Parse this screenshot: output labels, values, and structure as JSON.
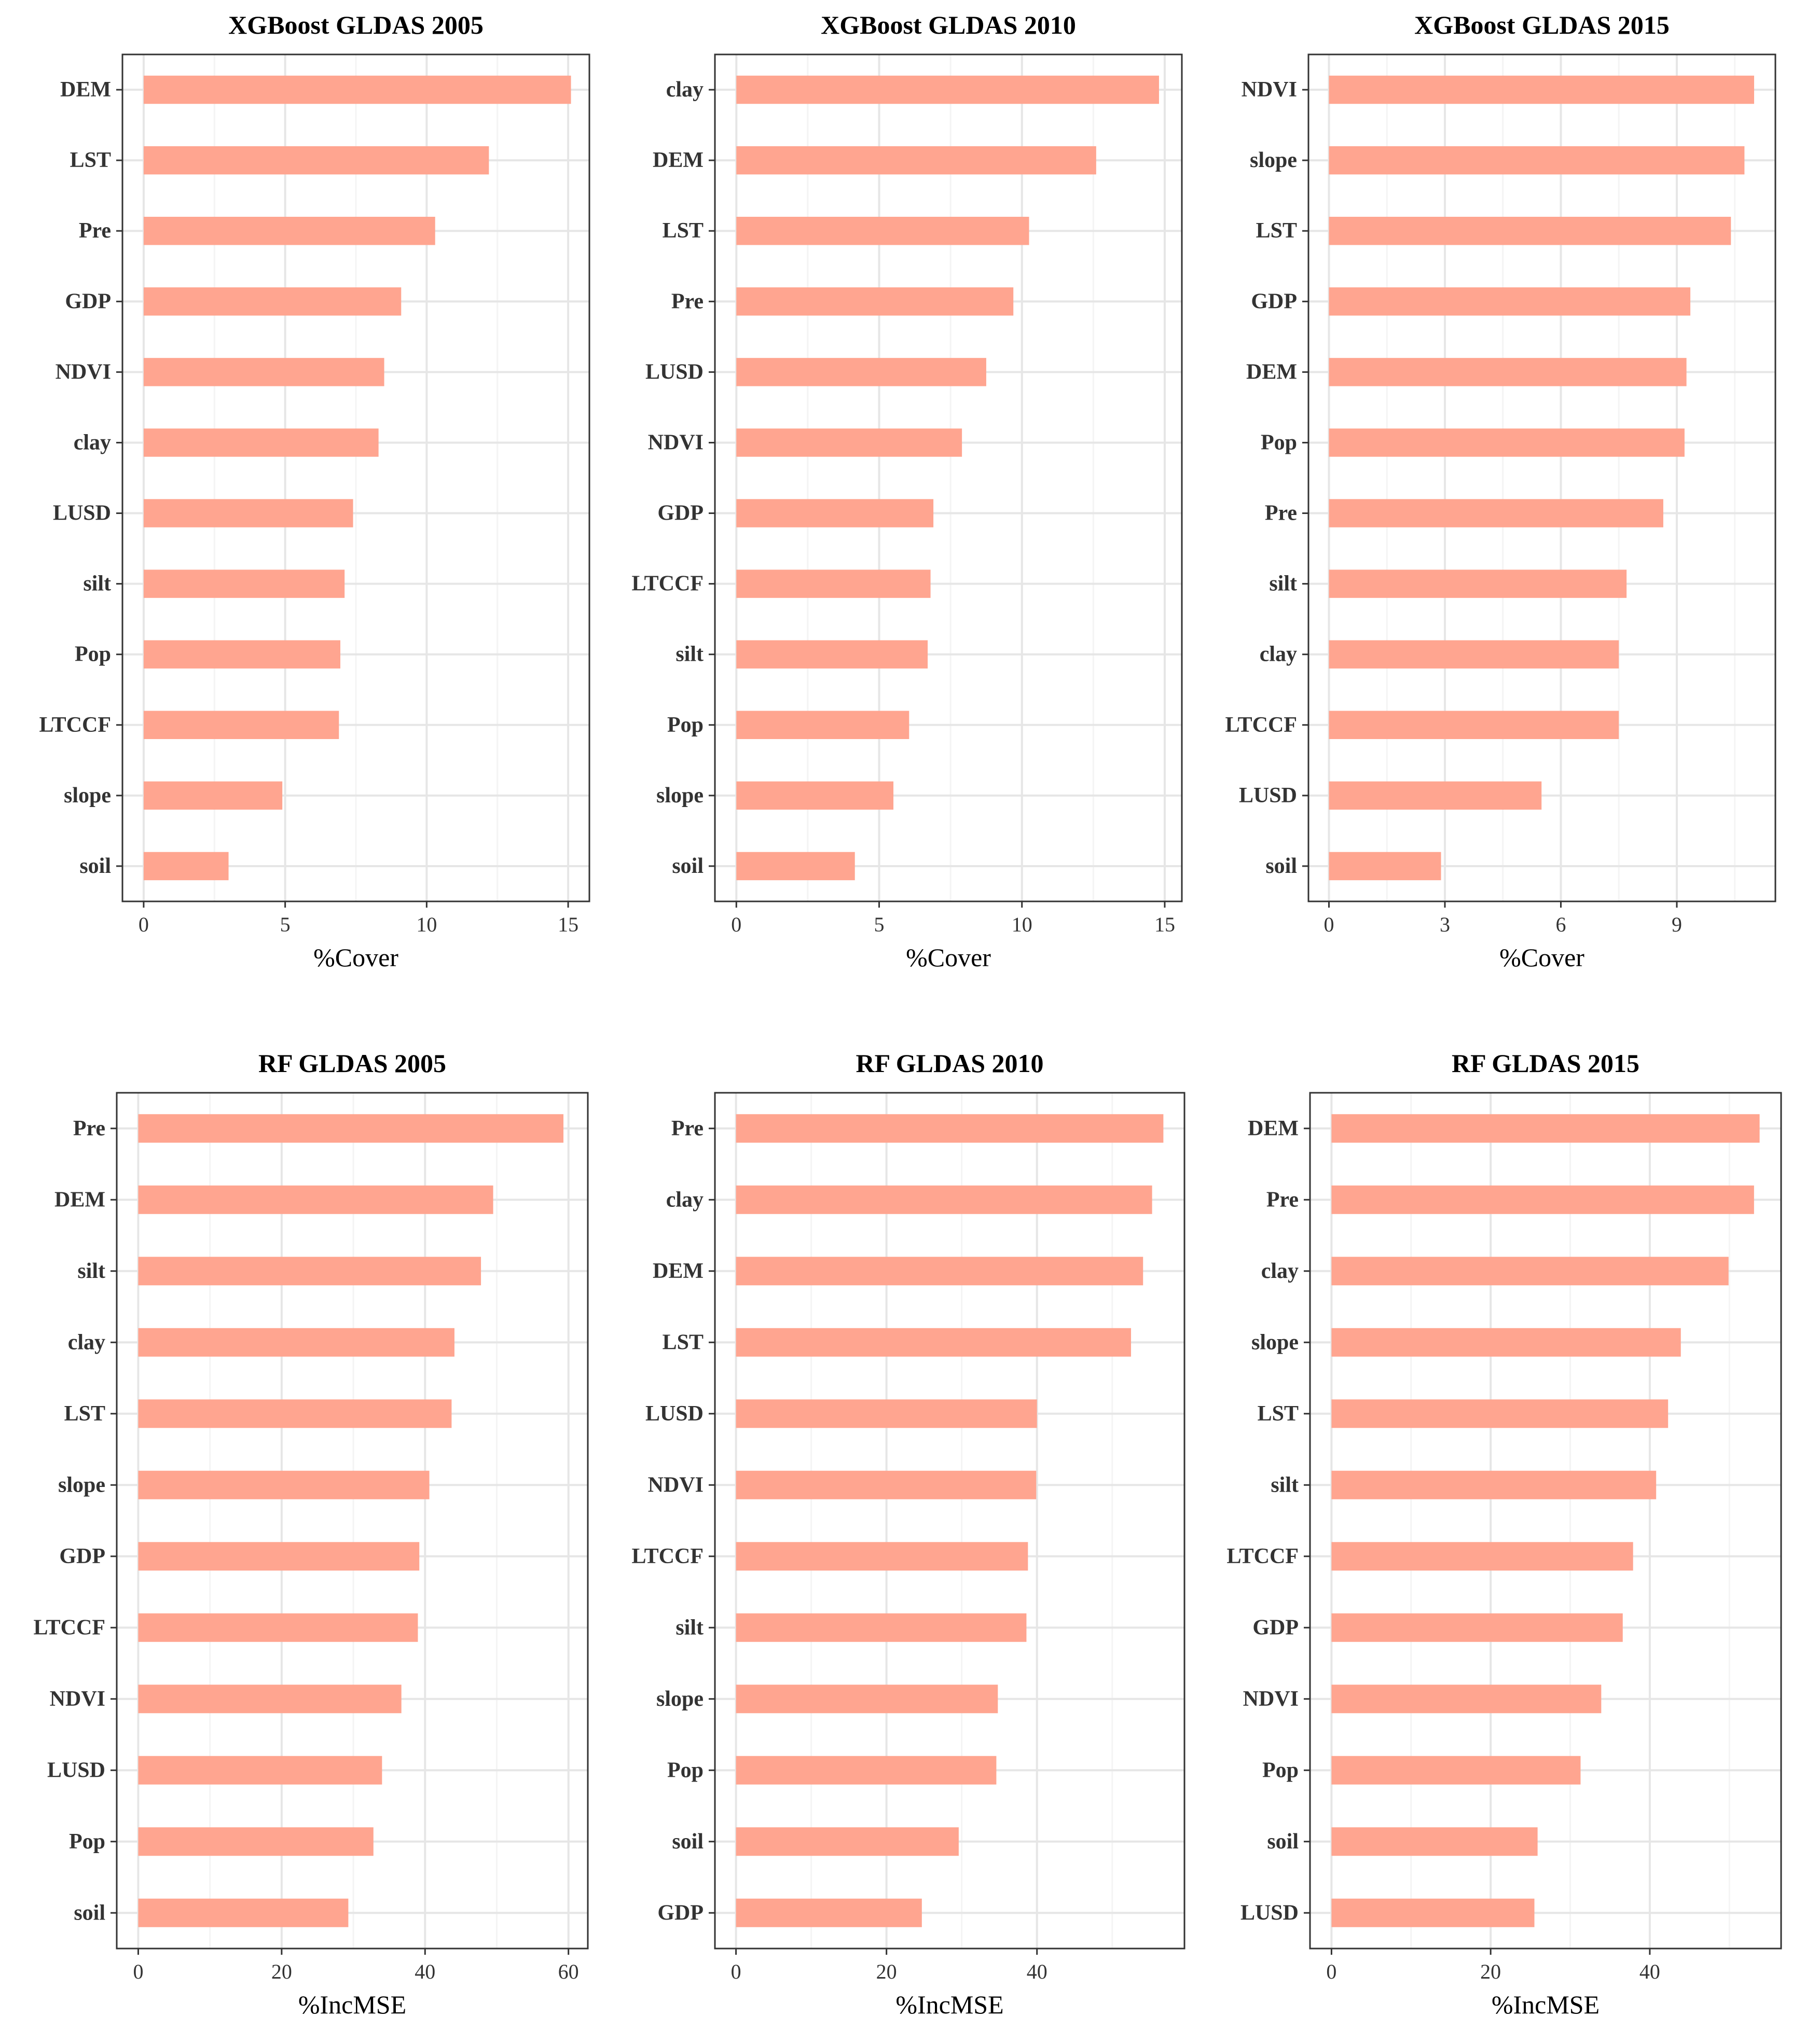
{
  "style": {
    "bar_color": "#FFA590",
    "frame_color": "#333333",
    "grid_major": "#E6E6E6",
    "grid_minor": "#F4F4F4",
    "tick_color": "#333333"
  },
  "chart_data": [
    {
      "type": "bar",
      "orientation": "horizontal",
      "title": "XGBoost GLDAS 2005",
      "xlabel": "%Cover",
      "xlim": [
        -0.75,
        15.75
      ],
      "xticks": [
        0,
        5,
        10,
        15
      ],
      "categories": [
        "DEM",
        "LST",
        "Pre",
        "GDP",
        "NDVI",
        "clay",
        "LUSD",
        "silt",
        "Pop",
        "LTCCF",
        "slope",
        "soil"
      ],
      "values": [
        15.1,
        12.2,
        10.3,
        9.1,
        8.5,
        8.3,
        7.4,
        7.1,
        6.95,
        6.9,
        4.9,
        3.0
      ]
    },
    {
      "type": "bar",
      "orientation": "horizontal",
      "title": "XGBoost GLDAS 2010",
      "xlabel": "%Cover",
      "xlim": [
        -0.75,
        15.6
      ],
      "xticks": [
        0,
        5,
        10,
        15
      ],
      "categories": [
        "clay",
        "DEM",
        "LST",
        "Pre",
        "LUSD",
        "NDVI",
        "GDP",
        "LTCCF",
        "silt",
        "Pop",
        "slope",
        "soil"
      ],
      "values": [
        14.8,
        12.6,
        10.25,
        9.7,
        8.75,
        7.9,
        6.9,
        6.8,
        6.7,
        6.05,
        5.5,
        4.15
      ]
    },
    {
      "type": "bar",
      "orientation": "horizontal",
      "title": "XGBoost GLDAS 2015",
      "xlabel": "%Cover",
      "xlim": [
        -0.53,
        11.55
      ],
      "xticks": [
        0,
        3,
        6,
        9
      ],
      "categories": [
        "NDVI",
        "slope",
        "LST",
        "GDP",
        "DEM",
        "Pop",
        "Pre",
        "silt",
        "clay",
        "LTCCF",
        "LUSD",
        "soil"
      ],
      "values": [
        11.0,
        10.75,
        10.4,
        9.35,
        9.25,
        9.2,
        8.65,
        7.7,
        7.5,
        7.5,
        5.5,
        2.9
      ]
    },
    {
      "type": "bar",
      "orientation": "horizontal",
      "title": "RF GLDAS 2005",
      "xlabel": "%IncMSE",
      "xlim": [
        -3,
        62.7
      ],
      "xticks": [
        0,
        20,
        40,
        60
      ],
      "categories": [
        "Pre",
        "DEM",
        "silt",
        "clay",
        "LST",
        "slope",
        "GDP",
        "LTCCF",
        "NDVI",
        "LUSD",
        "Pop",
        "soil"
      ],
      "values": [
        59.3,
        49.5,
        47.8,
        44.1,
        43.7,
        40.6,
        39.2,
        39.0,
        36.7,
        34.0,
        32.8,
        29.3
      ]
    },
    {
      "type": "bar",
      "orientation": "horizontal",
      "title": "RF GLDAS 2010",
      "xlabel": "%IncMSE",
      "xlim": [
        -2.8,
        59.6
      ],
      "xticks": [
        0,
        20,
        40
      ],
      "categories": [
        "Pre",
        "clay",
        "DEM",
        "LST",
        "LUSD",
        "NDVI",
        "LTCCF",
        "silt",
        "slope",
        "Pop",
        "soil",
        "GDP"
      ],
      "values": [
        56.8,
        55.3,
        54.1,
        52.5,
        40.0,
        39.9,
        38.8,
        38.6,
        34.8,
        34.6,
        29.6,
        24.7
      ]
    },
    {
      "type": "bar",
      "orientation": "horizontal",
      "title": "RF GLDAS 2015",
      "xlabel": "%IncMSE",
      "xlim": [
        -2.7,
        56.5
      ],
      "xticks": [
        0,
        20,
        40
      ],
      "categories": [
        "DEM",
        "Pre",
        "clay",
        "slope",
        "LST",
        "silt",
        "LTCCF",
        "GDP",
        "NDVI",
        "Pop",
        "soil",
        "LUSD"
      ],
      "values": [
        53.8,
        53.1,
        49.9,
        43.9,
        42.3,
        40.8,
        37.9,
        36.6,
        33.9,
        31.3,
        25.9,
        25.5
      ]
    }
  ]
}
